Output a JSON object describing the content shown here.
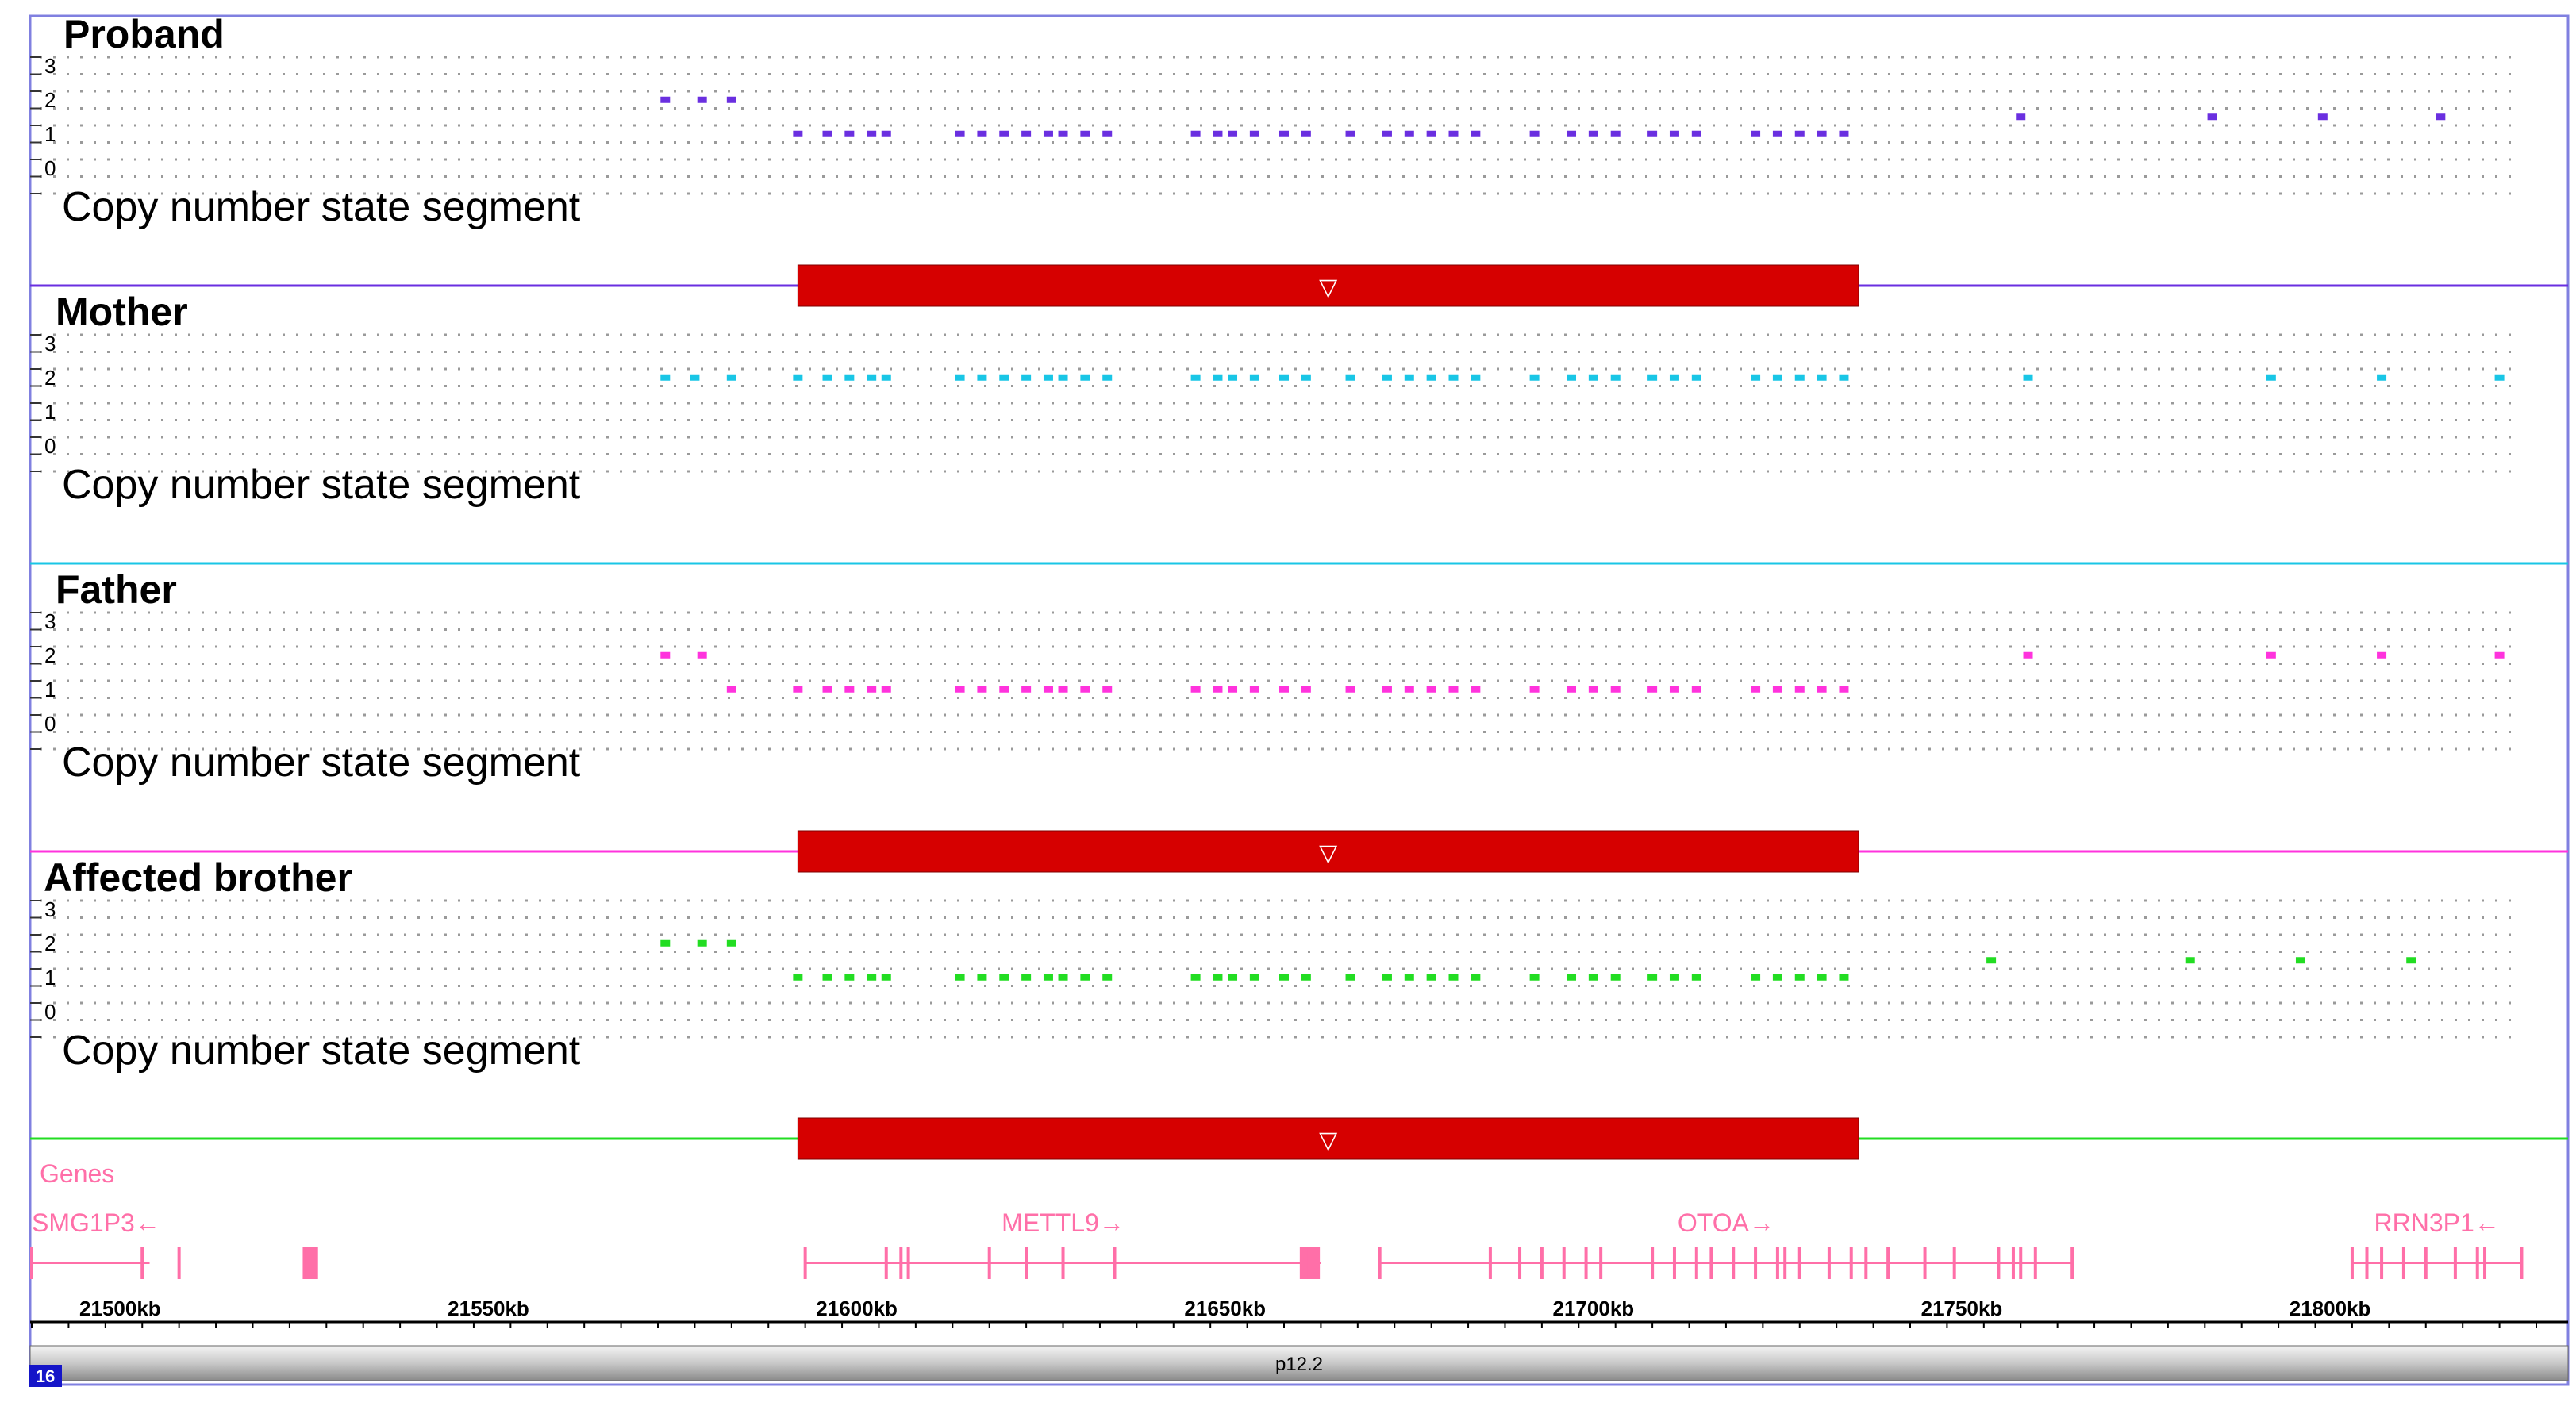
{
  "colors": {
    "proband": "#6a2fe0",
    "mother": "#19c6e6",
    "father": "#ff33dd",
    "brother": "#22dd22",
    "cnv_bar": "#d60000",
    "gene": "#ff6fa8",
    "border": "#8080e0"
  },
  "tracks": [
    {
      "id": "proband",
      "title": "Proband",
      "segment_label": "Copy number state segment",
      "has_cnv": true
    },
    {
      "id": "mother",
      "title": "Mother",
      "segment_label": "Copy number state segment",
      "has_cnv": false
    },
    {
      "id": "father",
      "title": "Father",
      "segment_label": "Copy number state segment",
      "has_cnv": true
    },
    {
      "id": "brother",
      "title": "Affected brother",
      "segment_label": "Copy number state segment",
      "has_cnv": true
    }
  ],
  "chart_data": {
    "type": "scatter",
    "x_unit": "kb",
    "xlim": [
      21488,
      21828
    ],
    "ylim": [
      0,
      3
    ],
    "y_ticks": [
      "3",
      "2",
      "1",
      "0"
    ],
    "cnv_region": {
      "start": 21592,
      "end": 21736,
      "marker": "▽"
    },
    "series": [
      {
        "name": "Proband",
        "points": [
          [
            21574,
            2
          ],
          [
            21579,
            2
          ],
          [
            21583,
            2
          ],
          [
            21592,
            1
          ],
          [
            21596,
            1
          ],
          [
            21599,
            1
          ],
          [
            21602,
            1
          ],
          [
            21604,
            1
          ],
          [
            21614,
            1
          ],
          [
            21617,
            1
          ],
          [
            21620,
            1
          ],
          [
            21623,
            1
          ],
          [
            21626,
            1
          ],
          [
            21628,
            1
          ],
          [
            21631,
            1
          ],
          [
            21634,
            1
          ],
          [
            21646,
            1
          ],
          [
            21649,
            1
          ],
          [
            21651,
            1
          ],
          [
            21654,
            1
          ],
          [
            21658,
            1
          ],
          [
            21661,
            1
          ],
          [
            21667,
            1
          ],
          [
            21672,
            1
          ],
          [
            21675,
            1
          ],
          [
            21678,
            1
          ],
          [
            21681,
            1
          ],
          [
            21684,
            1
          ],
          [
            21692,
            1
          ],
          [
            21697,
            1
          ],
          [
            21700,
            1
          ],
          [
            21703,
            1
          ],
          [
            21708,
            1
          ],
          [
            21711,
            1
          ],
          [
            21714,
            1
          ],
          [
            21722,
            1
          ],
          [
            21725,
            1
          ],
          [
            21728,
            1
          ],
          [
            21731,
            1
          ],
          [
            21734,
            1
          ],
          [
            21758,
            1.5
          ],
          [
            21784,
            1.5
          ],
          [
            21799,
            1.5
          ],
          [
            21815,
            1.5
          ]
        ]
      },
      {
        "name": "Mother",
        "points": [
          [
            21574,
            2
          ],
          [
            21578,
            2
          ],
          [
            21583,
            2
          ],
          [
            21592,
            2
          ],
          [
            21596,
            2
          ],
          [
            21599,
            2
          ],
          [
            21602,
            2
          ],
          [
            21604,
            2
          ],
          [
            21614,
            2
          ],
          [
            21617,
            2
          ],
          [
            21620,
            2
          ],
          [
            21623,
            2
          ],
          [
            21626,
            2
          ],
          [
            21628,
            2
          ],
          [
            21631,
            2
          ],
          [
            21634,
            2
          ],
          [
            21646,
            2
          ],
          [
            21649,
            2
          ],
          [
            21651,
            2
          ],
          [
            21654,
            2
          ],
          [
            21658,
            2
          ],
          [
            21661,
            2
          ],
          [
            21667,
            2
          ],
          [
            21672,
            2
          ],
          [
            21675,
            2
          ],
          [
            21678,
            2
          ],
          [
            21681,
            2
          ],
          [
            21684,
            2
          ],
          [
            21692,
            2
          ],
          [
            21697,
            2
          ],
          [
            21700,
            2
          ],
          [
            21703,
            2
          ],
          [
            21708,
            2
          ],
          [
            21711,
            2
          ],
          [
            21714,
            2
          ],
          [
            21722,
            2
          ],
          [
            21725,
            2
          ],
          [
            21728,
            2
          ],
          [
            21731,
            2
          ],
          [
            21734,
            2
          ],
          [
            21759,
            2
          ],
          [
            21792,
            2
          ],
          [
            21807,
            2
          ],
          [
            21823,
            2
          ]
        ]
      },
      {
        "name": "Father",
        "points": [
          [
            21574,
            2
          ],
          [
            21579,
            2
          ],
          [
            21583,
            1
          ],
          [
            21592,
            1
          ],
          [
            21596,
            1
          ],
          [
            21599,
            1
          ],
          [
            21602,
            1
          ],
          [
            21604,
            1
          ],
          [
            21614,
            1
          ],
          [
            21617,
            1
          ],
          [
            21620,
            1
          ],
          [
            21623,
            1
          ],
          [
            21626,
            1
          ],
          [
            21628,
            1
          ],
          [
            21631,
            1
          ],
          [
            21634,
            1
          ],
          [
            21646,
            1
          ],
          [
            21649,
            1
          ],
          [
            21651,
            1
          ],
          [
            21654,
            1
          ],
          [
            21658,
            1
          ],
          [
            21661,
            1
          ],
          [
            21667,
            1
          ],
          [
            21672,
            1
          ],
          [
            21675,
            1
          ],
          [
            21678,
            1
          ],
          [
            21681,
            1
          ],
          [
            21684,
            1
          ],
          [
            21692,
            1
          ],
          [
            21697,
            1
          ],
          [
            21700,
            1
          ],
          [
            21703,
            1
          ],
          [
            21708,
            1
          ],
          [
            21711,
            1
          ],
          [
            21714,
            1
          ],
          [
            21722,
            1
          ],
          [
            21725,
            1
          ],
          [
            21728,
            1
          ],
          [
            21731,
            1
          ],
          [
            21734,
            1
          ],
          [
            21759,
            2
          ],
          [
            21792,
            2
          ],
          [
            21807,
            2
          ],
          [
            21823,
            2
          ]
        ]
      },
      {
        "name": "Affected brother",
        "points": [
          [
            21574,
            2
          ],
          [
            21579,
            2
          ],
          [
            21583,
            2
          ],
          [
            21592,
            1
          ],
          [
            21596,
            1
          ],
          [
            21599,
            1
          ],
          [
            21602,
            1
          ],
          [
            21604,
            1
          ],
          [
            21614,
            1
          ],
          [
            21617,
            1
          ],
          [
            21620,
            1
          ],
          [
            21623,
            1
          ],
          [
            21626,
            1
          ],
          [
            21628,
            1
          ],
          [
            21631,
            1
          ],
          [
            21634,
            1
          ],
          [
            21646,
            1
          ],
          [
            21649,
            1
          ],
          [
            21651,
            1
          ],
          [
            21654,
            1
          ],
          [
            21658,
            1
          ],
          [
            21661,
            1
          ],
          [
            21667,
            1
          ],
          [
            21672,
            1
          ],
          [
            21675,
            1
          ],
          [
            21678,
            1
          ],
          [
            21681,
            1
          ],
          [
            21684,
            1
          ],
          [
            21692,
            1
          ],
          [
            21697,
            1
          ],
          [
            21700,
            1
          ],
          [
            21703,
            1
          ],
          [
            21708,
            1
          ],
          [
            21711,
            1
          ],
          [
            21714,
            1
          ],
          [
            21722,
            1
          ],
          [
            21725,
            1
          ],
          [
            21728,
            1
          ],
          [
            21731,
            1
          ],
          [
            21734,
            1
          ],
          [
            21754,
            1.5
          ],
          [
            21781,
            1.5
          ],
          [
            21796,
            1.5
          ],
          [
            21811,
            1.5
          ]
        ]
      }
    ],
    "genes_track_label": "Genes",
    "genes": [
      {
        "name": "SMG1P3←",
        "start": 21488,
        "end": 21504,
        "exons": [
          21488,
          21503,
          21508,
          21525,
          21526
        ]
      },
      {
        "name": "METTL9→",
        "start": 21593,
        "end": 21663,
        "exons": [
          21593,
          21604,
          21606,
          21607,
          21618,
          21623,
          21628,
          21635,
          21661,
          21662
        ]
      },
      {
        "name": "OTOA→",
        "start": 21671,
        "end": 21765,
        "exons": [
          21671,
          21686,
          21690,
          21693,
          21696,
          21699,
          21701,
          21708,
          21711,
          21714,
          21716,
          21719,
          21722,
          21725,
          21726,
          21728,
          21732,
          21735,
          21737,
          21740,
          21745,
          21749,
          21755,
          21757,
          21758,
          21760,
          21765
        ]
      },
      {
        "name": "RRN3P1←",
        "start": 21803,
        "end": 21826,
        "exons": [
          21803,
          21805,
          21807,
          21810,
          21813,
          21817,
          21820,
          21821,
          21826
        ]
      }
    ],
    "x_ticks": [
      "21500kb",
      "21550kb",
      "21600kb",
      "21650kb",
      "21700kb",
      "21750kb",
      "21800kb"
    ],
    "x_tick_values": [
      21500,
      21550,
      21600,
      21650,
      21700,
      21750,
      21800
    ],
    "chromosome_band": "p12.2",
    "chromosome_number": "16"
  }
}
